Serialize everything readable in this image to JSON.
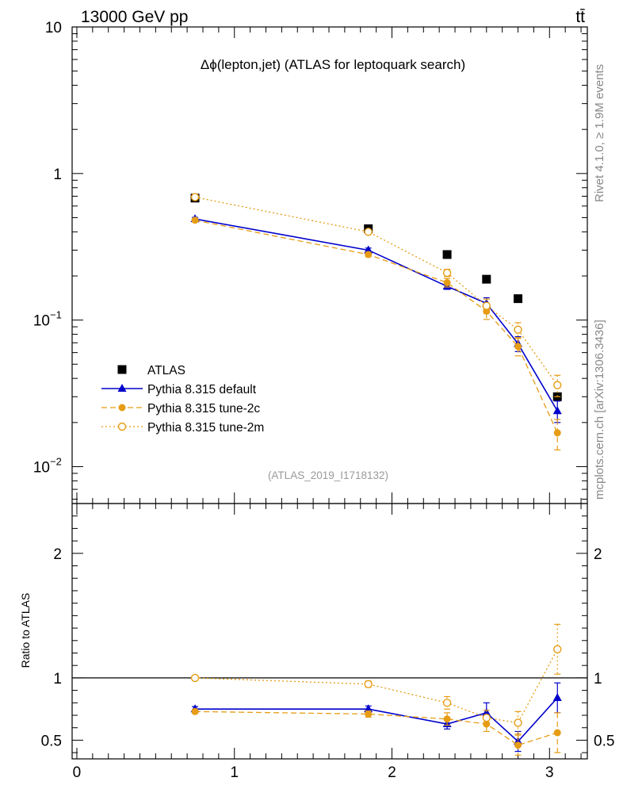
{
  "header": {
    "left": "13000 GeV pp",
    "right": "tt̄"
  },
  "side_text": {
    "rivet": "Rivet 4.1.0, ≥ 1.9M events",
    "mcplots": "mcplots.cern.ch [arXiv:1306.3436]"
  },
  "analysis_id": "(ATLAS_2019_I1718132)",
  "chart_data": {
    "type": "scatter",
    "title": "Δϕ(lepton,jet) (ATLAS for leptoquark search)",
    "xlabel": "",
    "ylabel": "",
    "xlim": [
      -0.03,
      3.24
    ],
    "ylim_log": [
      0.0056,
      10
    ],
    "yscale": "log",
    "main_ticks": {
      "x": [
        0,
        1,
        2,
        3
      ],
      "x_labels": [
        "0",
        "1",
        "2",
        "3"
      ],
      "y": [
        10,
        1,
        0.1,
        0.01
      ],
      "y_labels": [
        "10",
        "1",
        "10",
        "10"
      ],
      "y_exponents": [
        "",
        "",
        "−1",
        "−2"
      ]
    },
    "legend_position": "lower-left",
    "series": [
      {
        "name": "ATLAS",
        "style": "data",
        "color": "#000000",
        "x": [
          0.75,
          1.85,
          2.35,
          2.6,
          2.8,
          3.05
        ],
        "y": [
          0.68,
          0.42,
          0.28,
          0.19,
          0.14,
          0.03
        ]
      },
      {
        "name": "Pythia 8.315 default",
        "style": "solid-triangle",
        "color": "#0000cc",
        "x": [
          0.75,
          1.85,
          2.35,
          2.6,
          2.8,
          3.05
        ],
        "y": [
          0.49,
          0.3,
          0.17,
          0.13,
          0.069,
          0.024
        ],
        "err": [
          0.012,
          0.01,
          0.008,
          0.012,
          0.008,
          0.004
        ]
      },
      {
        "name": "Pythia 8.315 tune-2c",
        "style": "dashed-dot",
        "color": "#e69c14",
        "x": [
          0.75,
          1.85,
          2.35,
          2.6,
          2.8,
          3.05
        ],
        "y": [
          0.48,
          0.28,
          0.18,
          0.115,
          0.066,
          0.017
        ],
        "err": [
          0.012,
          0.01,
          0.012,
          0.014,
          0.009,
          0.004
        ]
      },
      {
        "name": "Pythia 8.315 tune-2m",
        "style": "dotted-open-circle",
        "color": "#e69c14",
        "x": [
          0.75,
          1.85,
          2.35,
          2.6,
          2.8,
          3.05
        ],
        "y": [
          0.69,
          0.4,
          0.21,
          0.125,
          0.086,
          0.036
        ],
        "err": [
          0.012,
          0.01,
          0.012,
          0.014,
          0.01,
          0.006
        ]
      }
    ],
    "ratio": {
      "ylabel": "Ratio to ATLAS",
      "ylim": [
        0.35,
        2.4
      ],
      "y_ticks": [
        0.5,
        1,
        2
      ],
      "y_labels": [
        "0.5",
        "1",
        "2"
      ],
      "reference": 1.0,
      "series": [
        {
          "name": "Pythia 8.315 default",
          "x": [
            0.75,
            1.85,
            2.35,
            2.6,
            2.8,
            3.05
          ],
          "y": [
            0.75,
            0.75,
            0.63,
            0.72,
            0.49,
            0.84
          ],
          "err": [
            0.02,
            0.025,
            0.04,
            0.08,
            0.08,
            0.12
          ]
        },
        {
          "name": "Pythia 8.315 tune-2c",
          "x": [
            0.75,
            1.85,
            2.35,
            2.6,
            2.8,
            3.05
          ],
          "y": [
            0.73,
            0.71,
            0.67,
            0.63,
            0.46,
            0.56
          ],
          "err": [
            0.015,
            0.025,
            0.05,
            0.06,
            0.08,
            0.16
          ]
        },
        {
          "name": "Pythia 8.315 tune-2m",
          "x": [
            0.75,
            1.85,
            2.35,
            2.6,
            2.8,
            3.05
          ],
          "y": [
            1.0,
            0.95,
            0.8,
            0.68,
            0.64,
            1.23
          ],
          "err": [
            0.015,
            0.025,
            0.05,
            0.06,
            0.09,
            0.2
          ]
        }
      ]
    }
  }
}
